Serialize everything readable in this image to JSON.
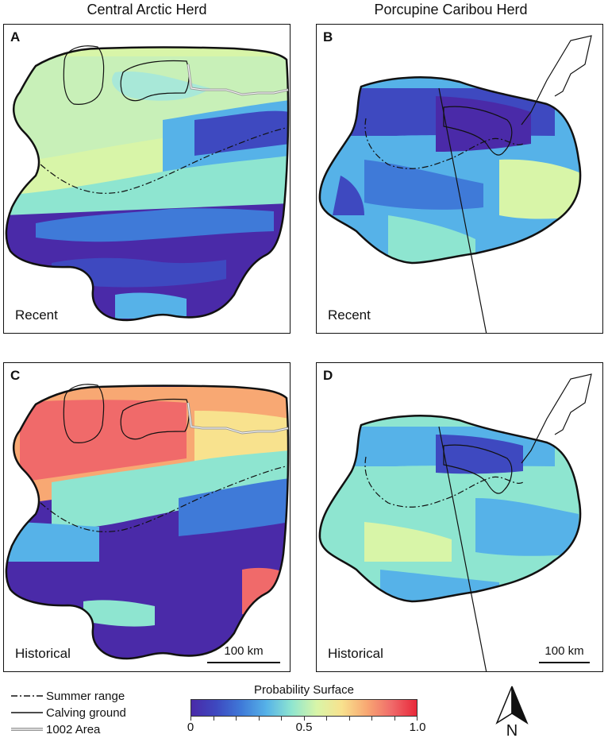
{
  "columns": {
    "left_title": "Central Arctic Herd",
    "right_title": "Porcupine Caribou Herd"
  },
  "panels": [
    {
      "letter": "A",
      "period": "Recent",
      "herd": "central",
      "palette": "recent"
    },
    {
      "letter": "B",
      "period": "Recent",
      "herd": "porcupine",
      "palette": "recent"
    },
    {
      "letter": "C",
      "period": "Historical",
      "herd": "central",
      "palette": "historical"
    },
    {
      "letter": "D",
      "period": "Historical",
      "herd": "porcupine",
      "palette": "historical"
    }
  ],
  "scale": {
    "label": "100 km"
  },
  "legend": {
    "summer_range": "Summer range",
    "calving_ground": "Calving ground",
    "area_1002": "1002 Area"
  },
  "colorbar": {
    "title": "Probability Surface",
    "min_label": "0",
    "mid_label": "0.5",
    "max_label": "1.0",
    "tick_values": [
      0,
      0.1,
      0.2,
      0.3,
      0.4,
      0.5,
      0.6,
      0.7,
      0.8,
      0.9,
      1.0
    ],
    "colors": [
      "#4a2aa8",
      "#3e49c0",
      "#3f7ad8",
      "#56b2e8",
      "#8ee5d0",
      "#d8f5a8",
      "#f8e28e",
      "#f8a873",
      "#f06a6a",
      "#e8283a"
    ]
  },
  "north_label": "N"
}
